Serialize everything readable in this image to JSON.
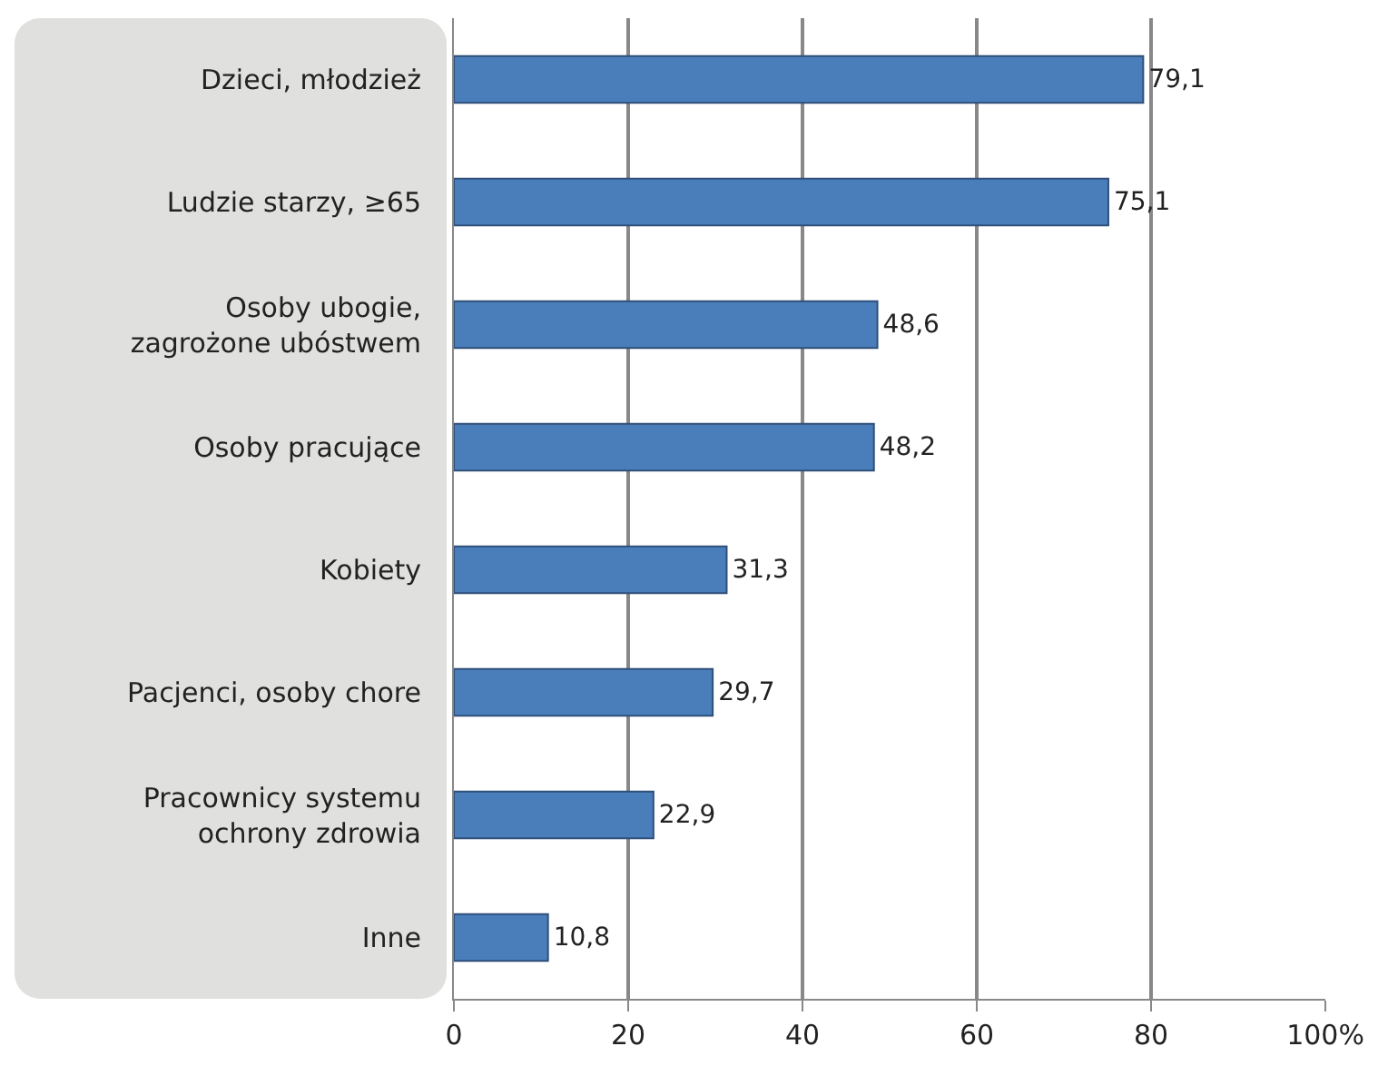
{
  "chart_data": {
    "type": "bar",
    "orientation": "horizontal",
    "categories": [
      "Dzieci, młodzież",
      "Ludzie starzy, ≥65",
      "Osoby ubogie,\nzagrożone ubóstwem",
      "Osoby pracujące",
      "Kobiety",
      "Pacjenci, osoby chore",
      "Pracownicy systemu\nochrony zdrowia",
      "Inne"
    ],
    "values": [
      79.1,
      75.1,
      48.6,
      48.2,
      31.3,
      29.7,
      22.9,
      10.8
    ],
    "value_labels": [
      "79,1",
      "75,1",
      "48,6",
      "48,2",
      "31,3",
      "29,7",
      "22,9",
      "10,8"
    ],
    "color": "#4a7ebb",
    "xlim": [
      0,
      100
    ],
    "xticks": [
      0,
      20,
      40,
      60,
      80,
      {
        "value": 100,
        "label": "100%"
      }
    ],
    "grid": "x",
    "legend": false
  }
}
